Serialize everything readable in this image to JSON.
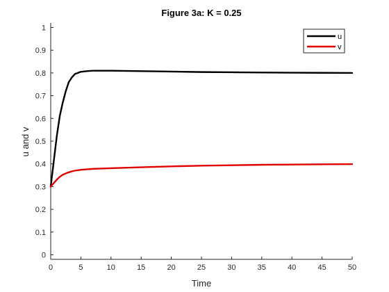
{
  "chart_data": {
    "type": "line",
    "title": "Figure 3a: K = 0.25",
    "xlabel": "Time",
    "ylabel": "u and v",
    "xlim": [
      0,
      50
    ],
    "ylim": [
      0,
      1
    ],
    "xticks": [
      "0",
      "5",
      "10",
      "15",
      "20",
      "25",
      "30",
      "35",
      "40",
      "45",
      "50"
    ],
    "yticks": [
      "0",
      "0.1",
      "0.2",
      "0.3",
      "0.4",
      "0.5",
      "0.6",
      "0.7",
      "0.8",
      "0.9",
      "1"
    ],
    "grid": false,
    "legend_position": "top-right",
    "series": [
      {
        "name": "u",
        "color": "#000000",
        "x": [
          0,
          0.5,
          1,
          1.5,
          2,
          2.5,
          3,
          3.5,
          4,
          4.5,
          5,
          6,
          7,
          8,
          9,
          10,
          15,
          20,
          25,
          30,
          35,
          40,
          45,
          50
        ],
        "y": [
          0.3,
          0.41,
          0.52,
          0.61,
          0.67,
          0.72,
          0.76,
          0.78,
          0.795,
          0.8,
          0.805,
          0.808,
          0.81,
          0.81,
          0.81,
          0.81,
          0.808,
          0.806,
          0.804,
          0.803,
          0.802,
          0.801,
          0.8005,
          0.8
        ]
      },
      {
        "name": "v",
        "color": "#e00000",
        "x": [
          0,
          0.5,
          1,
          1.5,
          2,
          2.5,
          3,
          3.5,
          4,
          5,
          6,
          7,
          8,
          10,
          15,
          20,
          25,
          30,
          35,
          40,
          45,
          50
        ],
        "y": [
          0.3,
          0.315,
          0.33,
          0.343,
          0.352,
          0.358,
          0.363,
          0.367,
          0.37,
          0.374,
          0.376,
          0.378,
          0.379,
          0.381,
          0.385,
          0.389,
          0.392,
          0.394,
          0.396,
          0.397,
          0.398,
          0.399
        ]
      }
    ]
  }
}
